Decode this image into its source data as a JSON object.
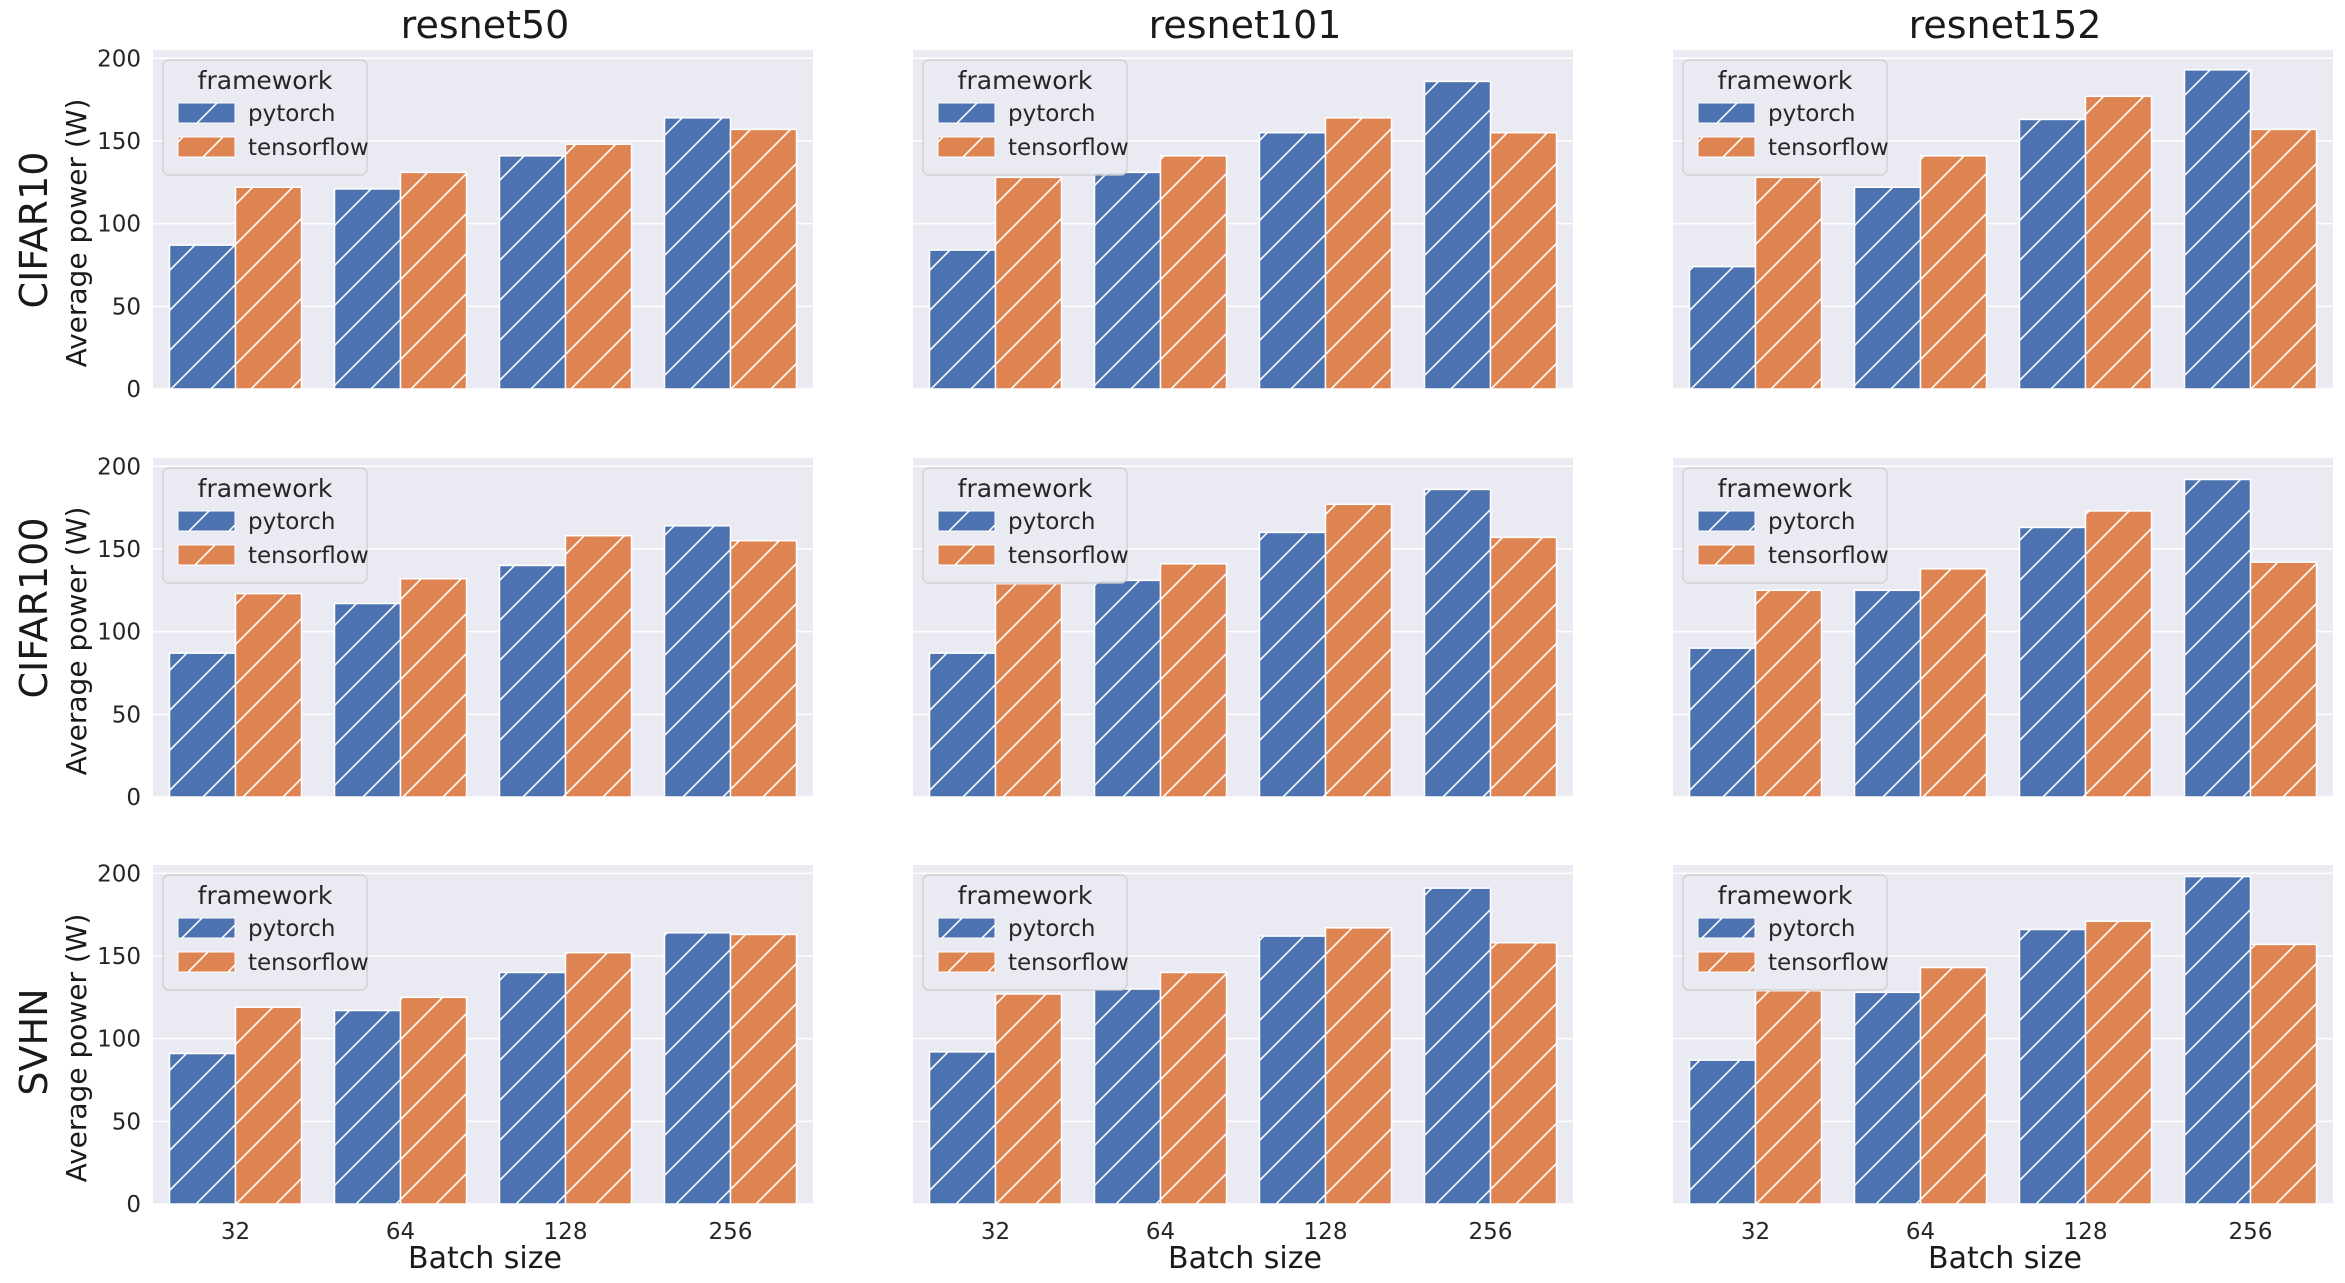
{
  "figure": {
    "col_titles": [
      "resnet50",
      "resnet101",
      "resnet152"
    ],
    "row_titles": [
      "CIFAR10",
      "CIFAR100",
      "SVHN"
    ],
    "ylabel": "Average power (W)",
    "xlabel": "Batch size",
    "legend_title": "framework",
    "legend_position": "top-left",
    "grid": true,
    "colors": {
      "pytorch": "#4c72b0",
      "tensorflow": "#dd8452",
      "plot_bg": "#eaeaf2",
      "grid": "#ffffff",
      "hatch": "#ffffff"
    }
  },
  "chart_data": [
    {
      "type": "bar",
      "dataset": "CIFAR10",
      "model": "resnet50",
      "categories": [
        "32",
        "64",
        "128",
        "256"
      ],
      "ylim": [
        0,
        205
      ],
      "yticks": [
        0,
        50,
        100,
        150,
        200
      ],
      "series": [
        {
          "name": "pytorch",
          "values": [
            87,
            121,
            141,
            164
          ]
        },
        {
          "name": "tensorflow",
          "values": [
            122,
            131,
            148,
            157
          ]
        }
      ]
    },
    {
      "type": "bar",
      "dataset": "CIFAR10",
      "model": "resnet101",
      "categories": [
        "32",
        "64",
        "128",
        "256"
      ],
      "ylim": [
        0,
        205
      ],
      "yticks": [
        0,
        50,
        100,
        150,
        200
      ],
      "series": [
        {
          "name": "pytorch",
          "values": [
            84,
            131,
            155,
            186
          ]
        },
        {
          "name": "tensorflow",
          "values": [
            128,
            141,
            164,
            155
          ]
        }
      ]
    },
    {
      "type": "bar",
      "dataset": "CIFAR10",
      "model": "resnet152",
      "categories": [
        "32",
        "64",
        "128",
        "256"
      ],
      "ylim": [
        0,
        205
      ],
      "yticks": [
        0,
        50,
        100,
        150,
        200
      ],
      "series": [
        {
          "name": "pytorch",
          "values": [
            74,
            122,
            163,
            193
          ]
        },
        {
          "name": "tensorflow",
          "values": [
            128,
            141,
            177,
            157
          ]
        }
      ]
    },
    {
      "type": "bar",
      "dataset": "CIFAR100",
      "model": "resnet50",
      "categories": [
        "32",
        "64",
        "128",
        "256"
      ],
      "ylim": [
        0,
        205
      ],
      "yticks": [
        0,
        50,
        100,
        150,
        200
      ],
      "series": [
        {
          "name": "pytorch",
          "values": [
            87,
            117,
            140,
            164
          ]
        },
        {
          "name": "tensorflow",
          "values": [
            123,
            132,
            158,
            155
          ]
        }
      ]
    },
    {
      "type": "bar",
      "dataset": "CIFAR100",
      "model": "resnet101",
      "categories": [
        "32",
        "64",
        "128",
        "256"
      ],
      "ylim": [
        0,
        205
      ],
      "yticks": [
        0,
        50,
        100,
        150,
        200
      ],
      "series": [
        {
          "name": "pytorch",
          "values": [
            87,
            131,
            160,
            186
          ]
        },
        {
          "name": "tensorflow",
          "values": [
            129,
            141,
            177,
            157
          ]
        }
      ]
    },
    {
      "type": "bar",
      "dataset": "CIFAR100",
      "model": "resnet152",
      "categories": [
        "32",
        "64",
        "128",
        "256"
      ],
      "ylim": [
        0,
        205
      ],
      "yticks": [
        0,
        50,
        100,
        150,
        200
      ],
      "series": [
        {
          "name": "pytorch",
          "values": [
            90,
            125,
            163,
            192
          ]
        },
        {
          "name": "tensorflow",
          "values": [
            125,
            138,
            173,
            142
          ]
        }
      ]
    },
    {
      "type": "bar",
      "dataset": "SVHN",
      "model": "resnet50",
      "categories": [
        "32",
        "64",
        "128",
        "256"
      ],
      "ylim": [
        0,
        205
      ],
      "yticks": [
        0,
        50,
        100,
        150,
        200
      ],
      "series": [
        {
          "name": "pytorch",
          "values": [
            91,
            117,
            140,
            164
          ]
        },
        {
          "name": "tensorflow",
          "values": [
            119,
            125,
            152,
            163
          ]
        }
      ]
    },
    {
      "type": "bar",
      "dataset": "SVHN",
      "model": "resnet101",
      "categories": [
        "32",
        "64",
        "128",
        "256"
      ],
      "ylim": [
        0,
        205
      ],
      "yticks": [
        0,
        50,
        100,
        150,
        200
      ],
      "series": [
        {
          "name": "pytorch",
          "values": [
            92,
            130,
            162,
            191
          ]
        },
        {
          "name": "tensorflow",
          "values": [
            127,
            140,
            167,
            158
          ]
        }
      ]
    },
    {
      "type": "bar",
      "dataset": "SVHN",
      "model": "resnet152",
      "categories": [
        "32",
        "64",
        "128",
        "256"
      ],
      "ylim": [
        0,
        205
      ],
      "yticks": [
        0,
        50,
        100,
        150,
        200
      ],
      "series": [
        {
          "name": "pytorch",
          "values": [
            87,
            128,
            166,
            198
          ]
        },
        {
          "name": "tensorflow",
          "values": [
            129,
            143,
            171,
            157
          ]
        }
      ]
    }
  ]
}
